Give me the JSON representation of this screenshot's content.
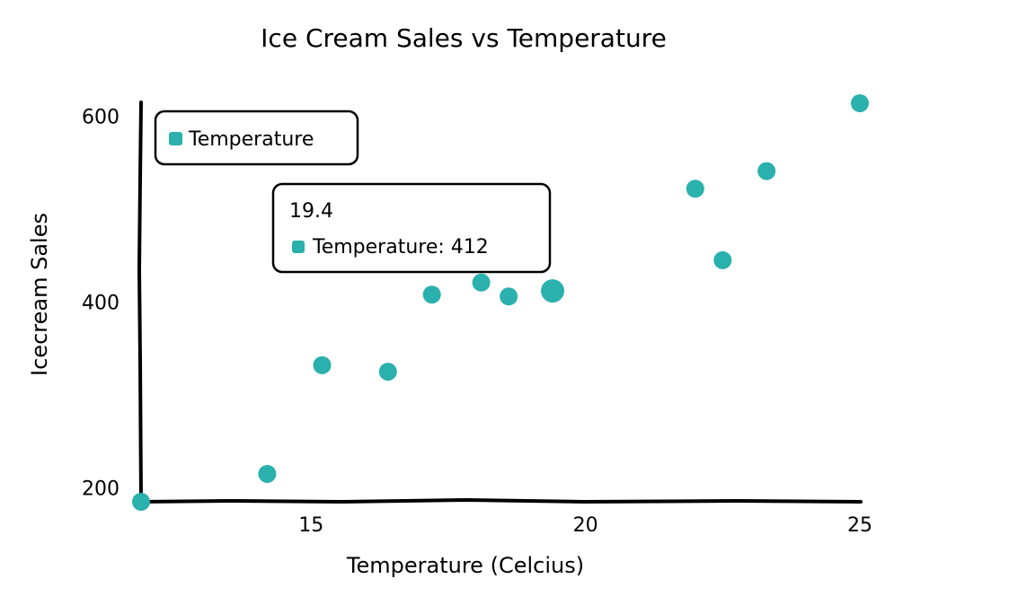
{
  "chart_data": {
    "type": "scatter",
    "title": "Ice Cream Sales vs Temperature",
    "xlabel": "Temperature (Celcius)",
    "ylabel": "Icecream Sales",
    "xlim": [
      11.9,
      25
    ],
    "ylim": [
      185,
      615
    ],
    "x_ticks": [
      {
        "value": 15,
        "label": "15"
      },
      {
        "value": 20,
        "label": "20"
      },
      {
        "value": 25,
        "label": "25"
      }
    ],
    "y_ticks": [
      {
        "value": 200,
        "label": "200"
      },
      {
        "value": 400,
        "label": "400"
      },
      {
        "value": 600,
        "label": "600"
      }
    ],
    "grid": false,
    "legend_position": "top-left",
    "series": [
      {
        "name": "Temperature",
        "color": "#2ab0ad",
        "points": [
          {
            "x": 11.9,
            "y": 185
          },
          {
            "x": 14.2,
            "y": 215
          },
          {
            "x": 15.2,
            "y": 332
          },
          {
            "x": 16.4,
            "y": 325
          },
          {
            "x": 17.2,
            "y": 408
          },
          {
            "x": 18.1,
            "y": 421
          },
          {
            "x": 18.6,
            "y": 406
          },
          {
            "x": 19.4,
            "y": 412
          },
          {
            "x": 22.0,
            "y": 522
          },
          {
            "x": 22.5,
            "y": 445
          },
          {
            "x": 23.3,
            "y": 541
          },
          {
            "x": 25.0,
            "y": 614
          }
        ]
      }
    ],
    "tooltip": {
      "title": "19.4",
      "label": "Temperature: 412",
      "point_index": 7
    }
  }
}
